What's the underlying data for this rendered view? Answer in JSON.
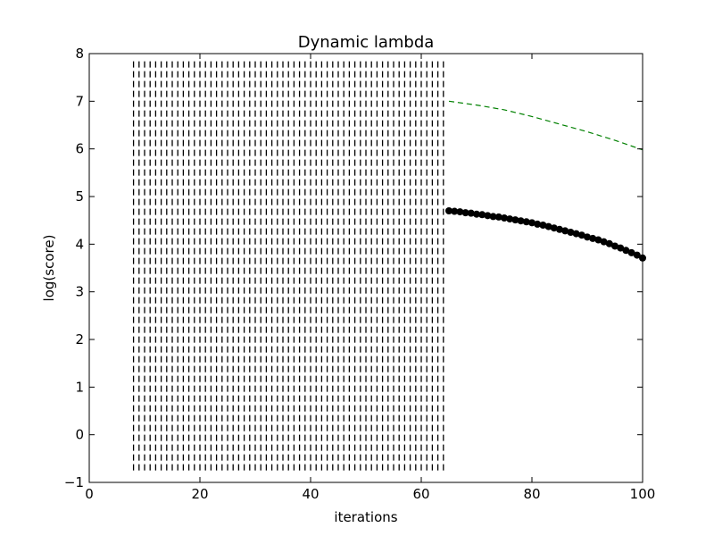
{
  "chart_data": {
    "type": "line",
    "title": "Dynamic lambda",
    "xlabel": "iterations",
    "ylabel": "log(score)",
    "xlim": [
      0,
      100
    ],
    "ylim": [
      -1,
      8
    ],
    "xticks": [
      "0",
      "20",
      "40",
      "60",
      "80",
      "100"
    ],
    "yticks": [
      "−1",
      "0",
      "1",
      "2",
      "3",
      "4",
      "5",
      "6",
      "7",
      "8"
    ],
    "grid": false,
    "legend": "none",
    "series": [
      {
        "style": "vertical dashed lines",
        "color": "#000000",
        "x_start": 8,
        "x_end": 64,
        "x_step": 1,
        "y_range": [
          -0.75,
          7.85
        ]
      },
      {
        "style": "dashed line",
        "color": "#008000",
        "x": [
          65,
          70,
          75,
          80,
          85,
          90,
          95,
          100
        ],
        "y": [
          7.0,
          6.92,
          6.82,
          6.68,
          6.52,
          6.36,
          6.18,
          5.98
        ]
      },
      {
        "style": "solid line with circle markers",
        "color": "#000000",
        "x": [
          65,
          66,
          67,
          68,
          69,
          70,
          71,
          72,
          73,
          74,
          75,
          76,
          77,
          78,
          79,
          80,
          81,
          82,
          83,
          84,
          85,
          86,
          87,
          88,
          89,
          90,
          91,
          92,
          93,
          94,
          95,
          96,
          97,
          98,
          99,
          100
        ],
        "y": [
          4.7,
          4.69,
          4.68,
          4.66,
          4.65,
          4.63,
          4.62,
          4.6,
          4.58,
          4.57,
          4.55,
          4.53,
          4.51,
          4.49,
          4.47,
          4.45,
          4.42,
          4.4,
          4.37,
          4.34,
          4.31,
          4.28,
          4.25,
          4.22,
          4.19,
          4.15,
          4.12,
          4.09,
          4.05,
          4.01,
          3.96,
          3.92,
          3.87,
          3.82,
          3.77,
          3.71
        ]
      }
    ]
  }
}
